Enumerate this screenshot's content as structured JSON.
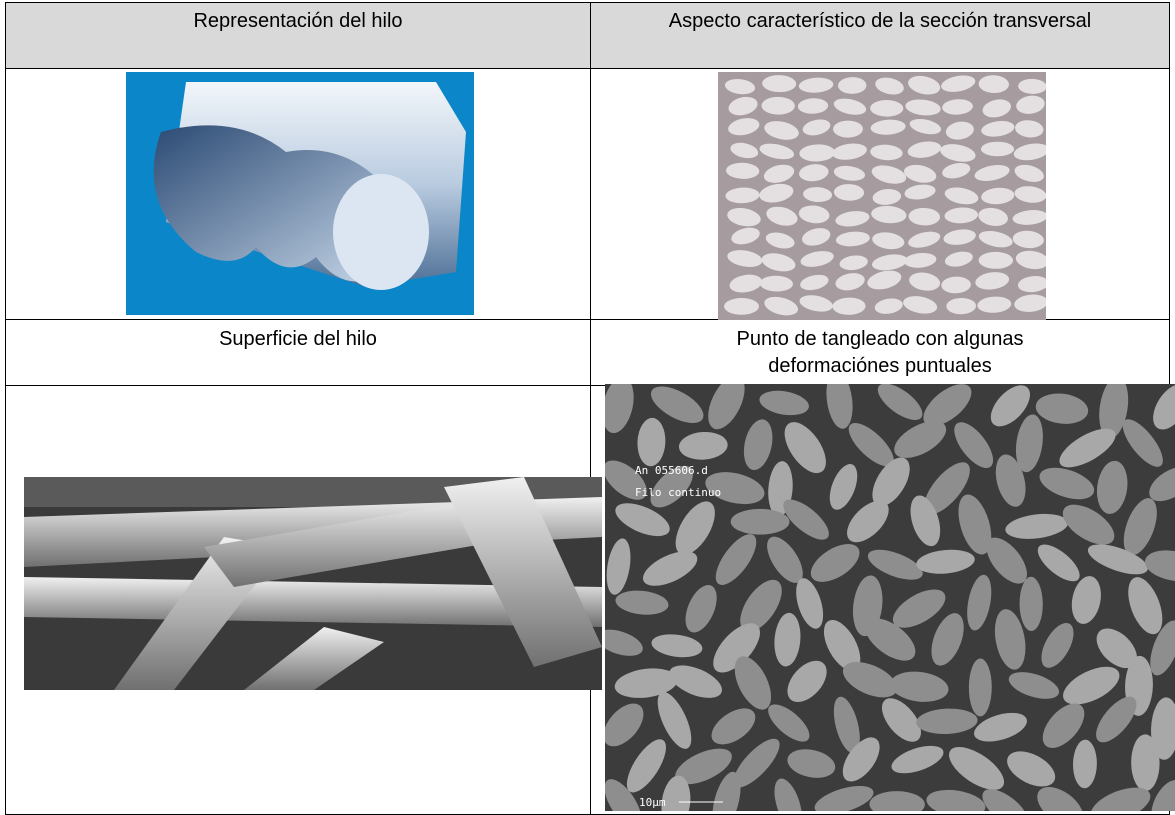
{
  "table": {
    "rows": [
      [
        "Representación del hilo",
        "Aspecto característico de la sección transversal"
      ],
      [
        "Superficie del hilo",
        "Punto de tangleado con algunas deformaciónes puntuales"
      ]
    ]
  },
  "micrograph": {
    "labels": [
      "An 055606.d",
      "Filo continuo"
    ],
    "scale": "10µm"
  }
}
